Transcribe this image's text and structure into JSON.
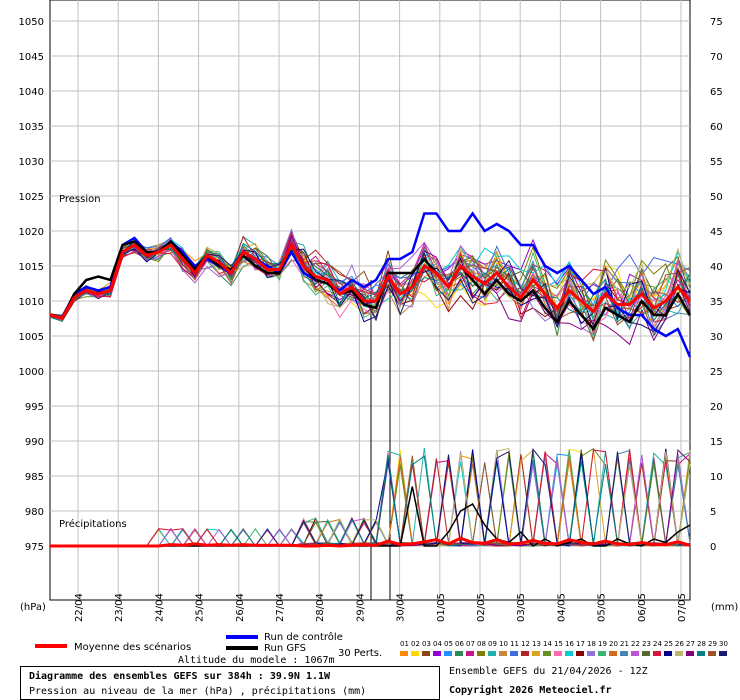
{
  "chart_data": {
    "type": "line",
    "title": "Diagramme des ensembles GEFS sur 384h : 39.9N 1.1W",
    "subtitle": "Pression au niveau de la mer (hPa) , précipitations (mm)",
    "ylabel_left": "(hPa)",
    "ylabel_right": "(mm)",
    "panel_labels": {
      "pressure": "Pression",
      "precip": "Précipitations"
    },
    "y_left_ticks": [
      1050,
      1045,
      1040,
      1035,
      1030,
      1025,
      1020,
      1015,
      1010,
      1005,
      1000,
      995,
      990,
      985,
      980,
      975
    ],
    "y_right_ticks": [
      75,
      70,
      65,
      60,
      55,
      50,
      45,
      40,
      35,
      30,
      25,
      20,
      15,
      10,
      5,
      0
    ],
    "ylim_left": [
      975,
      1050
    ],
    "ylim_right": [
      0,
      75
    ],
    "x_tick_labels": [
      "22/04",
      "23/04",
      "24/04",
      "25/04",
      "26/04",
      "27/04",
      "28/04",
      "29/04",
      "30/04",
      "01/05",
      "02/05",
      "03/05",
      "04/05",
      "05/05",
      "06/05",
      "07/05"
    ],
    "grid": true,
    "mean_pressure": [
      1008.0,
      1007.5,
      1010.5,
      1011.5,
      1011,
      1011.5,
      1017,
      1018,
      1016.5,
      1017,
      1018,
      1016,
      1014,
      1016.5,
      1015.5,
      1014,
      1017,
      1016,
      1014.5,
      1014.5,
      1018,
      1015,
      1013.5,
      1013,
      1011,
      1012,
      1010,
      1010,
      1013.5,
      1011,
      1012,
      1015,
      1014,
      1012,
      1015,
      1013.5,
      1012.5,
      1014,
      1012,
      1010.5,
      1013,
      1011,
      1009,
      1011.5,
      1010,
      1008.5,
      1011,
      1009.5,
      1009.5,
      1011,
      1009,
      1010,
      1012,
      1010
    ],
    "control_pressure": [
      1008,
      1007.5,
      1011,
      1012,
      1011.5,
      1012,
      1018,
      1019,
      1017,
      1017,
      1018.5,
      1017,
      1015,
      1016,
      1015,
      1014,
      1017,
      1016,
      1015,
      1014,
      1017,
      1014,
      1013,
      1012.5,
      1011.5,
      1013,
      1012,
      1013,
      1016,
      1016,
      1017,
      1022.5,
      1022.5,
      1020,
      1020,
      1022.5,
      1020,
      1021,
      1020,
      1018,
      1018,
      1015,
      1014,
      1015,
      1013,
      1011,
      1012,
      1009,
      1008,
      1008,
      1006,
      1005,
      1006,
      1002
    ],
    "gfs_pressure": [
      1008,
      1007.5,
      1011,
      1013,
      1013.5,
      1013,
      1018,
      1018.5,
      1017,
      1017,
      1018.5,
      1016.5,
      1014.5,
      1016.5,
      1015,
      1014.5,
      1016.5,
      1015,
      1014,
      1014,
      1018,
      1015,
      1013,
      1012.5,
      1011,
      1011.5,
      1009.5,
      1009,
      1014,
      1014,
      1014,
      1016,
      1014,
      1012,
      1015,
      1013,
      1011,
      1013,
      1011,
      1010,
      1011.5,
      1009,
      1007,
      1010,
      1008,
      1006,
      1009,
      1008,
      1007,
      1010,
      1008,
      1008,
      1011,
      1008
    ],
    "mean_precip": [
      0,
      0,
      0,
      0,
      0,
      0,
      0,
      0,
      0,
      0,
      0.2,
      0.1,
      0.3,
      0.1,
      0.2,
      0.1,
      0.2,
      0.1,
      0.1,
      0.1,
      0.1,
      0,
      0,
      0.1,
      0,
      0.1,
      0.2,
      0.1,
      0.7,
      0.2,
      0.3,
      0.6,
      0.9,
      0.3,
      1.1,
      0.5,
      0.4,
      0.9,
      0.3,
      0.4,
      0.8,
      0.4,
      0.3,
      0.9,
      0.5,
      0.3,
      0.7,
      0.3,
      0.2,
      0.5,
      0.2,
      0.2,
      0.6,
      0.1
    ],
    "control_precip": [
      0,
      0,
      0,
      0,
      0,
      0,
      0,
      0,
      0,
      0,
      0,
      0,
      0,
      0,
      0,
      0,
      0,
      0,
      0,
      0,
      0,
      0,
      0,
      0,
      0,
      0,
      0,
      0,
      0,
      0,
      0,
      0,
      0,
      0,
      0,
      0,
      0,
      0,
      0,
      0,
      0,
      0,
      0,
      0,
      0,
      0,
      0,
      0,
      0,
      0,
      0,
      0,
      0,
      0
    ],
    "gfs_precip": [
      0,
      0,
      0,
      0,
      0,
      0,
      0,
      0,
      0,
      0,
      0,
      0,
      0,
      0,
      0,
      0,
      0,
      0,
      0,
      0,
      0,
      0,
      0,
      0,
      0,
      0,
      0,
      0,
      0,
      0,
      8.5,
      0,
      0,
      2,
      5,
      6,
      3,
      1,
      0.5,
      2,
      0,
      1,
      0,
      0.5,
      1,
      0,
      0,
      1,
      0.3,
      0,
      1,
      0.5,
      2,
      3
    ],
    "legend": {
      "mean_label": "Moyenne des scénarios",
      "control_label": "Run de contrôle",
      "gfs_label": "Run GFS",
      "perts_label": "30 Perts.",
      "mean_color": "#ff0000",
      "control_color": "#0000ff",
      "gfs_color": "#000000",
      "member_numbers": [
        "01",
        "02",
        "03",
        "04",
        "05",
        "06",
        "07",
        "08",
        "09",
        "10",
        "11",
        "12",
        "13",
        "14",
        "15",
        "16",
        "17",
        "18",
        "19",
        "20",
        "21",
        "22",
        "23",
        "24",
        "25",
        "26",
        "27",
        "28",
        "29",
        "30"
      ],
      "member_colors": [
        "#ff8c00",
        "#ffd700",
        "#8b4513",
        "#9400d3",
        "#1e90ff",
        "#2e8b57",
        "#c71585",
        "#808000",
        "#20b2aa",
        "#cd853f",
        "#4169e1",
        "#b22222",
        "#daa520",
        "#6b8e23",
        "#ff69b4",
        "#00ced1",
        "#8b0000",
        "#9370db",
        "#3cb371",
        "#d2691e",
        "#4682b4",
        "#ba55d3",
        "#556b2f",
        "#dc143c",
        "#00008b",
        "#bdb76b",
        "#800080",
        "#008080",
        "#a0522d",
        "#191970"
      ]
    }
  },
  "footer": {
    "altitude": "Altitude du modele : 1067m",
    "title": "Diagramme des ensembles GEFS sur 384h : 39.9N 1.1W",
    "subtitle": "Pression au niveau de la mer (hPa) , précipitations (mm)",
    "run": "Ensemble GEFS du 21/04/2026 - 12Z",
    "copyright": "Copyright 2026 Meteociel.fr"
  }
}
